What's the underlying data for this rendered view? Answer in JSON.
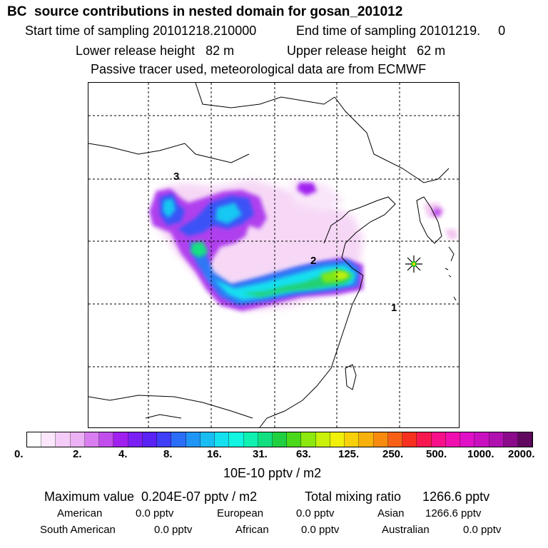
{
  "header": {
    "title": "BC  source contributions in nested domain for gosan_201012",
    "start_sampling": "Start time of sampling 20101218.210000",
    "end_sampling": "End time of sampling 20101219.     0",
    "lower_release": "Lower release height   82 m",
    "upper_release": "Upper release height   62 m",
    "tracer_note": "Passive tracer used, meteorological data are from ECMWF"
  },
  "map": {
    "labels": [
      {
        "id": "label-3",
        "text": "3"
      },
      {
        "id": "label-2",
        "text": "2"
      },
      {
        "id": "label-1",
        "text": "1"
      }
    ],
    "receptor_marker": "star-marker-icon"
  },
  "colorbar": {
    "ticks": [
      "0.",
      "2.",
      "4.",
      "8.",
      "16.",
      "31.",
      "63.",
      "125.",
      "250.",
      "500.",
      "1000.",
      "2000."
    ],
    "unit_label": "10E-10 pptv / m2",
    "colors": [
      "#ffffff",
      "#fbe6fb",
      "#f4ccf7",
      "#ecb0f4",
      "#d97ef0",
      "#c24ded",
      "#a020f0",
      "#7a20f5",
      "#5a22f5",
      "#3f3ff7",
      "#2a6ef8",
      "#1f95f5",
      "#19bdf2",
      "#14e0f0",
      "#12f5e0",
      "#10f0b0",
      "#12e080",
      "#20d040",
      "#4cd81a",
      "#8ce80e",
      "#c8f00a",
      "#f0f00a",
      "#f8d00a",
      "#f8b00c",
      "#f88a10",
      "#f86018",
      "#f83020",
      "#f81850",
      "#f8108a",
      "#f010b0",
      "#e010c8",
      "#c810c0",
      "#b010b0",
      "#8a0a8a",
      "#600860"
    ]
  },
  "footer": {
    "maximum_value": "Maximum value  0.204E-07 pptv / m2",
    "total_mixing": "Total mixing ratio      1266.6 pptv",
    "american_label": "American",
    "american_value": "0.0 pptv",
    "european_label": "European",
    "european_value": "0.0 pptv",
    "asian_label": "Asian",
    "asian_value": "1266.6 pptv",
    "south_american_label": "South American",
    "south_american_value": "0.0 pptv",
    "african_label": "African",
    "african_value": "0.0 pptv",
    "australian_label": "Australian",
    "australian_value": "0.0 pptv"
  }
}
